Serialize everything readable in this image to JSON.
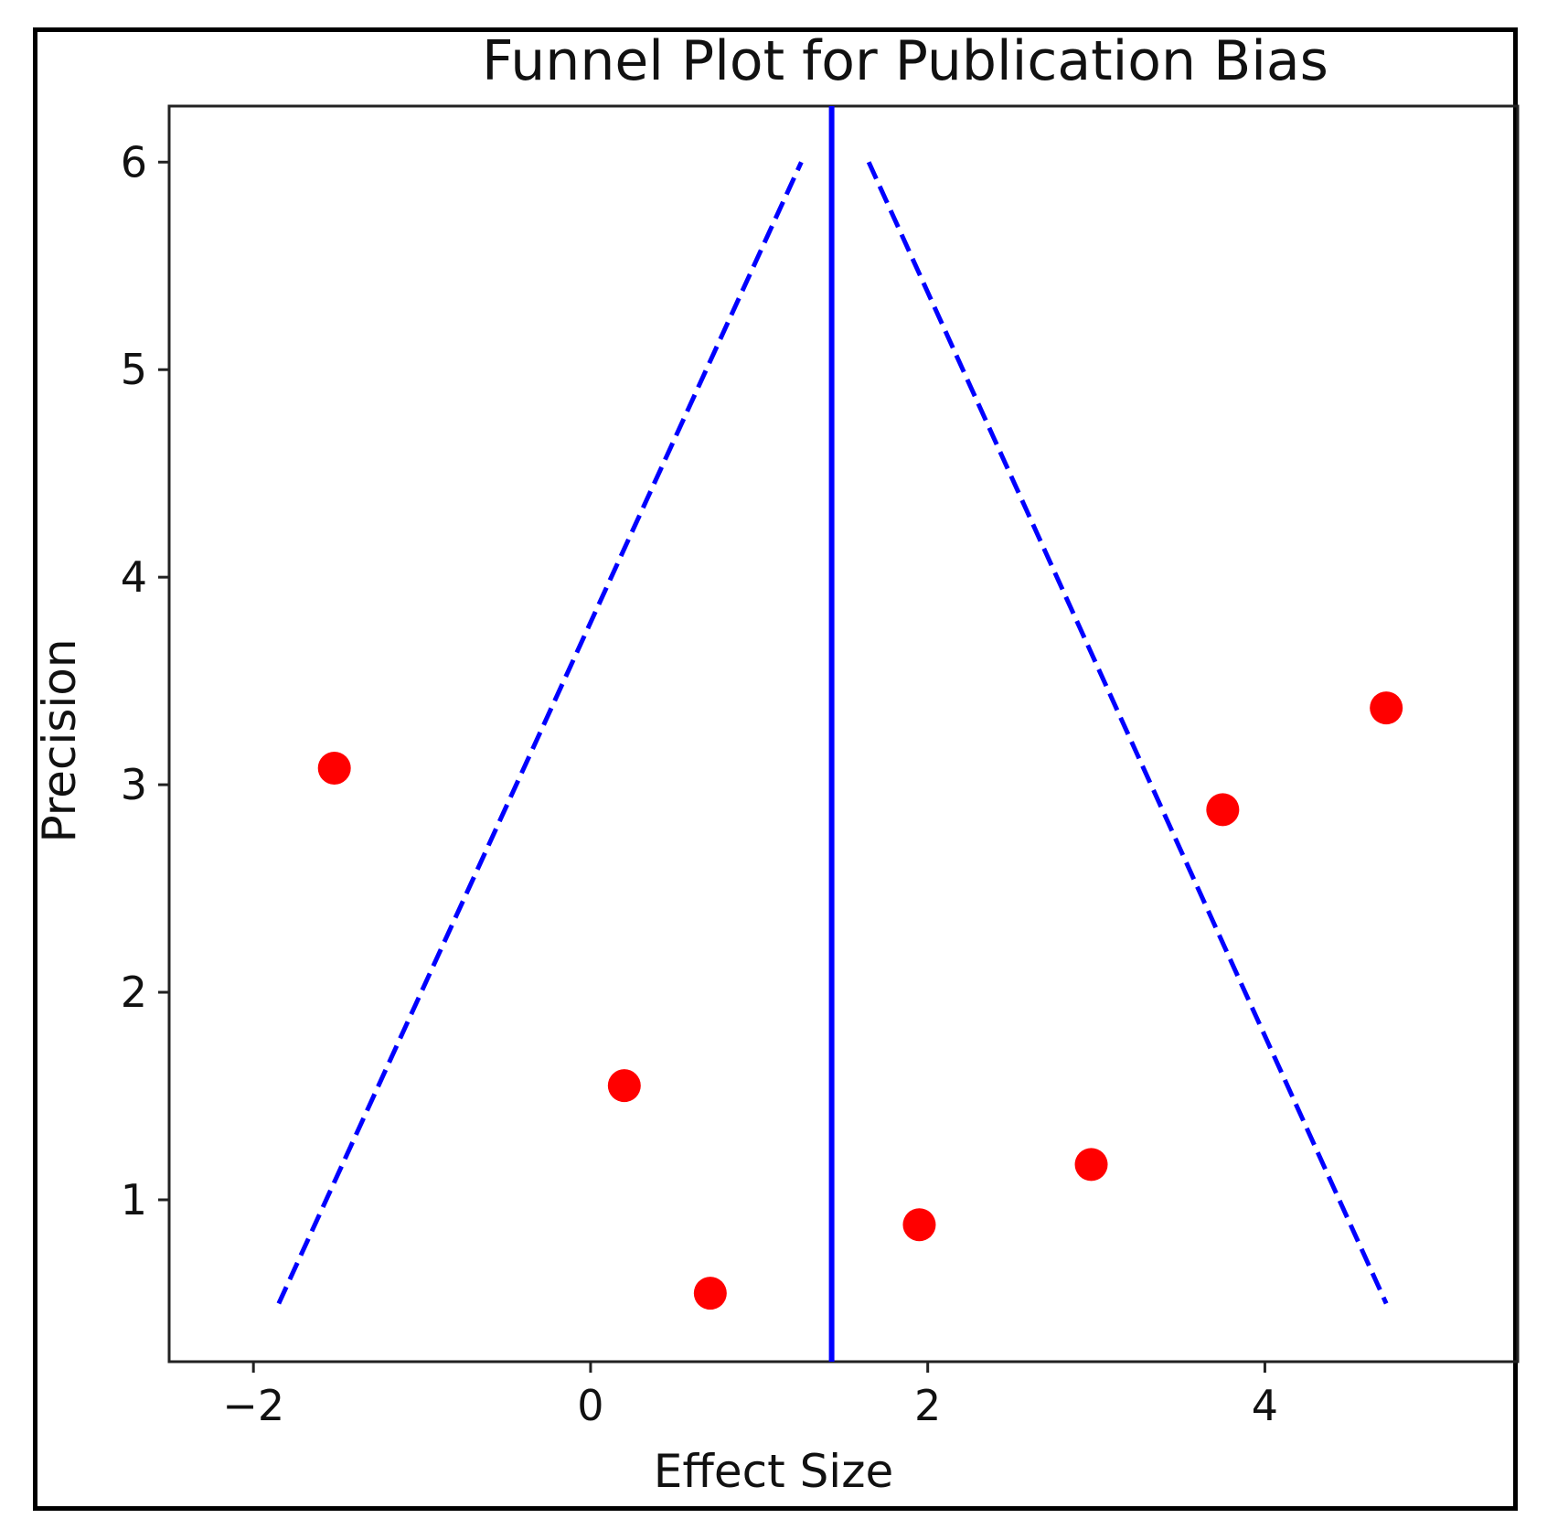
{
  "chart_data": {
    "type": "scatter",
    "title": "Funnel Plot for Publication Bias",
    "xlabel": "Effect Size",
    "ylabel": "Precision",
    "xlim": [
      -2.5,
      5.5
    ],
    "ylim": [
      0.22,
      6.27
    ],
    "xticks": [
      {
        "value": -2,
        "label": "−2"
      },
      {
        "value": 0,
        "label": "0"
      },
      {
        "value": 2,
        "label": "2"
      },
      {
        "value": 4,
        "label": "4"
      }
    ],
    "yticks": [
      {
        "value": 1,
        "label": "1"
      },
      {
        "value": 2,
        "label": "2"
      },
      {
        "value": 3,
        "label": "3"
      },
      {
        "value": 4,
        "label": "4"
      },
      {
        "value": 5,
        "label": "5"
      },
      {
        "value": 6,
        "label": "6"
      }
    ],
    "grid": false,
    "points": [
      {
        "x": -1.52,
        "y": 3.08
      },
      {
        "x": 0.2,
        "y": 1.55
      },
      {
        "x": 0.71,
        "y": 0.55
      },
      {
        "x": 1.95,
        "y": 0.88
      },
      {
        "x": 2.97,
        "y": 1.17
      },
      {
        "x": 3.75,
        "y": 2.88
      },
      {
        "x": 4.72,
        "y": 3.37
      }
    ],
    "point_color": "#ff0000",
    "mean_effect": 1.43,
    "mean_line_color": "#0000ff",
    "funnel_lines": [
      {
        "x": [
          -1.85,
          1.25
        ],
        "y": [
          0.5,
          6.0
        ]
      },
      {
        "x": [
          1.65,
          4.72
        ],
        "y": [
          6.0,
          0.5
        ]
      }
    ],
    "funnel_color": "#0000ff"
  }
}
